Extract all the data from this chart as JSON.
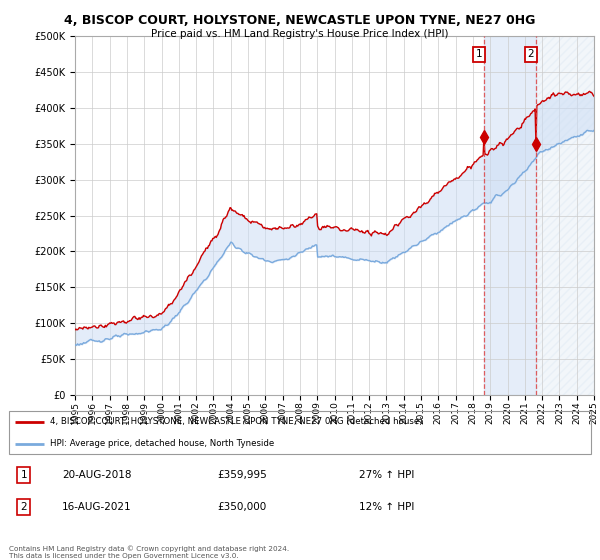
{
  "title": "4, BISCOP COURT, HOLYSTONE, NEWCASTLE UPON TYNE, NE27 0HG",
  "subtitle": "Price paid vs. HM Land Registry's House Price Index (HPI)",
  "legend_line1": "4, BISCOP COURT, HOLYSTONE, NEWCASTLE UPON TYNE, NE27 0HG (detached house)",
  "legend_line2": "HPI: Average price, detached house, North Tyneside",
  "annotation1_label": "1",
  "annotation1_date": "20-AUG-2018",
  "annotation1_price": "£359,995",
  "annotation1_hpi": "27% ↑ HPI",
  "annotation1_year": 2018.64,
  "annotation1_value": 359995,
  "annotation2_label": "2",
  "annotation2_date": "16-AUG-2021",
  "annotation2_price": "£350,000",
  "annotation2_hpi": "12% ↑ HPI",
  "annotation2_year": 2021.64,
  "annotation2_value": 350000,
  "copyright": "Contains HM Land Registry data © Crown copyright and database right 2024.\nThis data is licensed under the Open Government Licence v3.0.",
  "ylim": [
    0,
    500000
  ],
  "xlim_start": 1995,
  "xlim_end": 2025,
  "red_color": "#cc0000",
  "blue_color": "#7aaadd",
  "fill_color": "#ccddf5",
  "vline_color": "#dd4444",
  "vline2_color": "#aabbdd",
  "background_color": "#ffffff",
  "grid_color": "#cccccc",
  "hatch_color": "#ccddee"
}
